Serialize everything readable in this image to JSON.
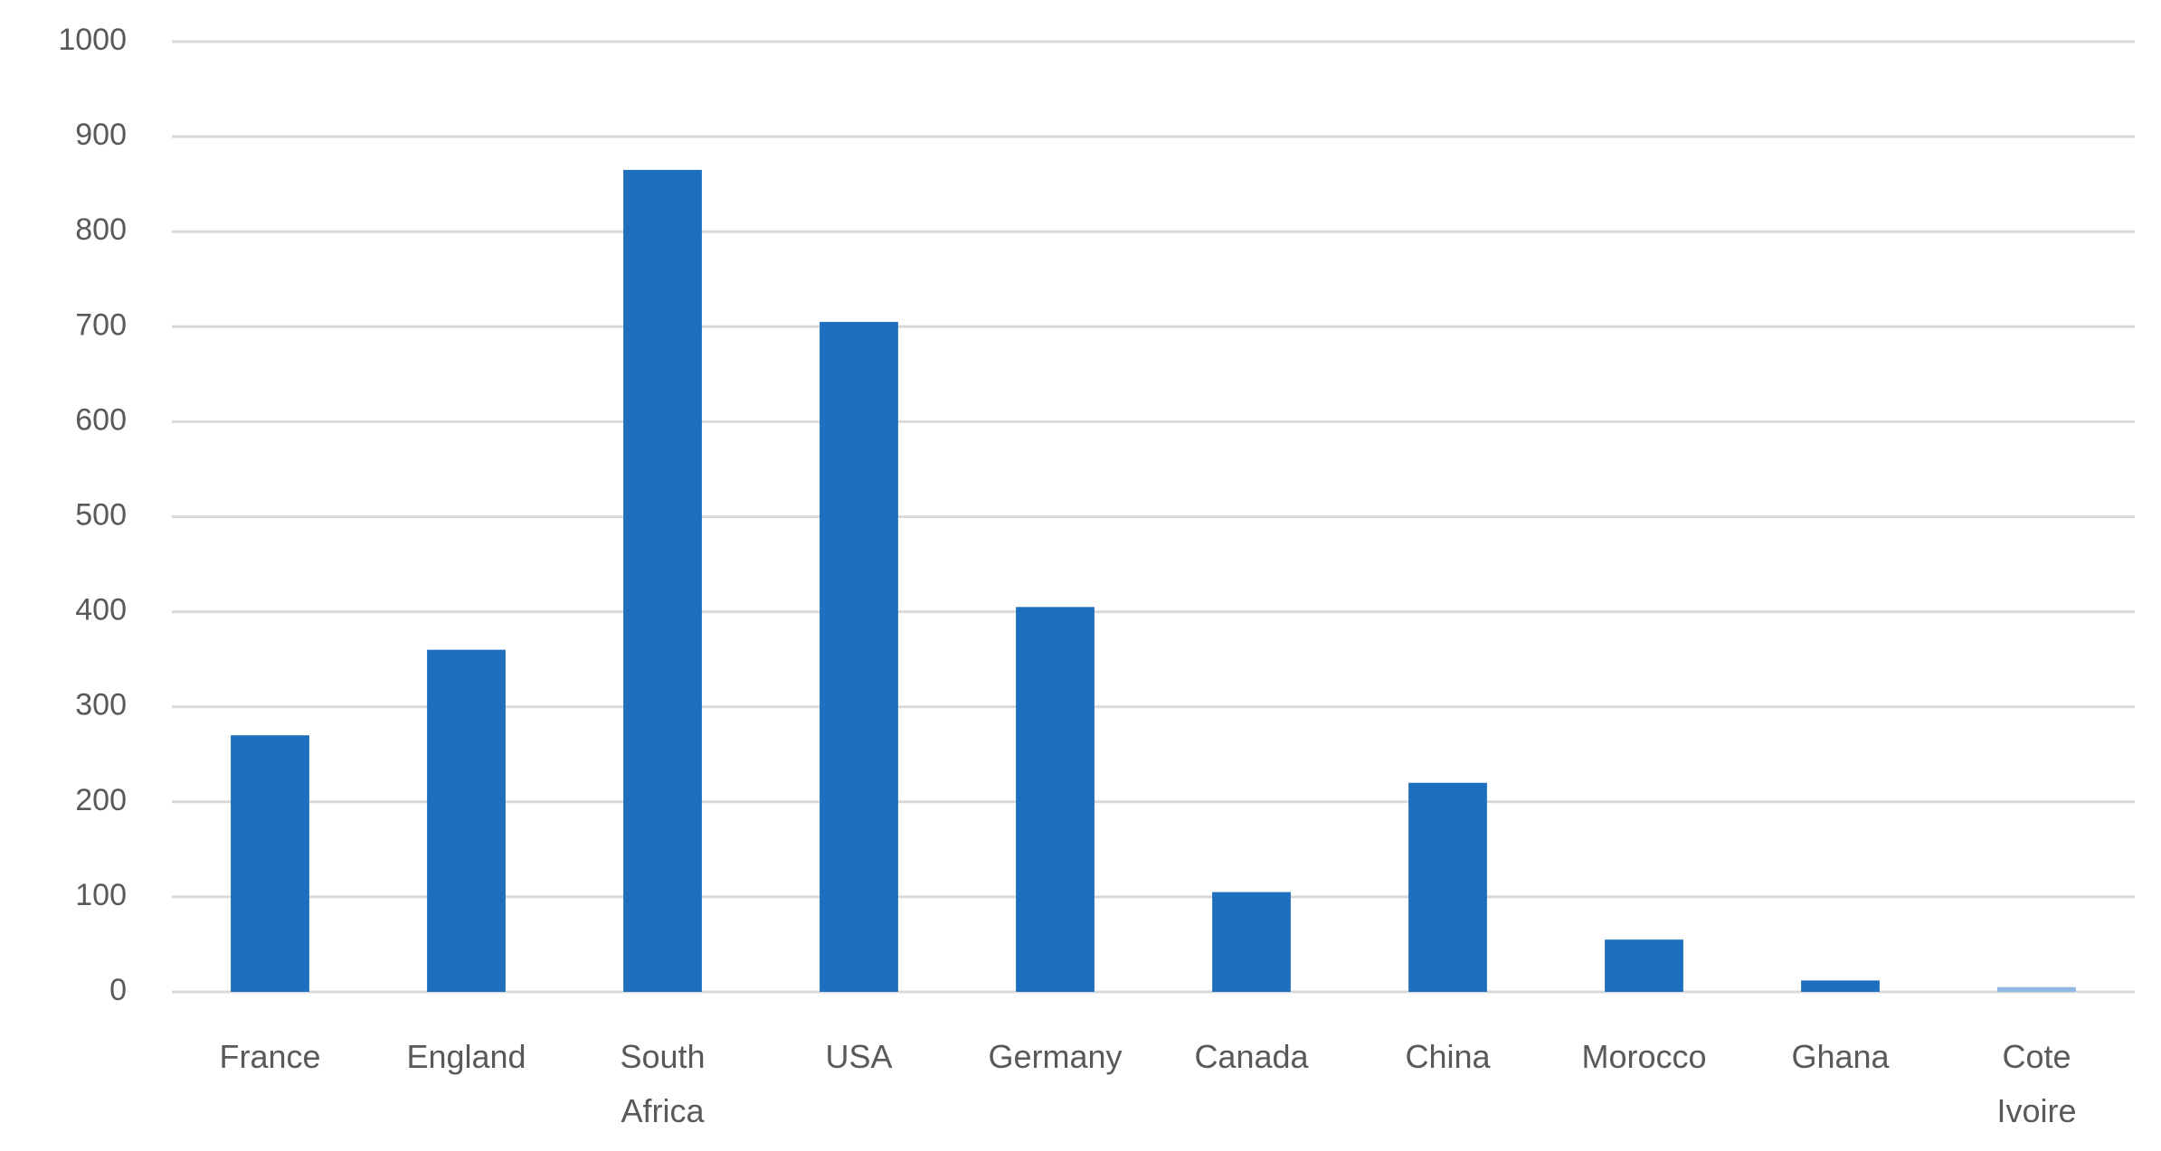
{
  "chart_data": {
    "type": "bar",
    "categories": [
      "France",
      "England",
      "South Africa",
      "USA",
      "Germany",
      "Canada",
      "China",
      "Morocco",
      "Ghana",
      "Cote Ivoire"
    ],
    "values": [
      270,
      360,
      865,
      705,
      405,
      105,
      220,
      55,
      12,
      5
    ],
    "colors": [
      "#1f6fbf",
      "#1f6fbf",
      "#1f6fbf",
      "#1f6fbf",
      "#1f6fbf",
      "#1f6fbf",
      "#1f6fbf",
      "#1f6fbf",
      "#1f6fbf",
      "#8fb8e3"
    ],
    "ylim": [
      0,
      1000
    ],
    "yticks": [
      0,
      100,
      200,
      300,
      400,
      500,
      600,
      700,
      800,
      900,
      1000
    ],
    "grid": true
  }
}
